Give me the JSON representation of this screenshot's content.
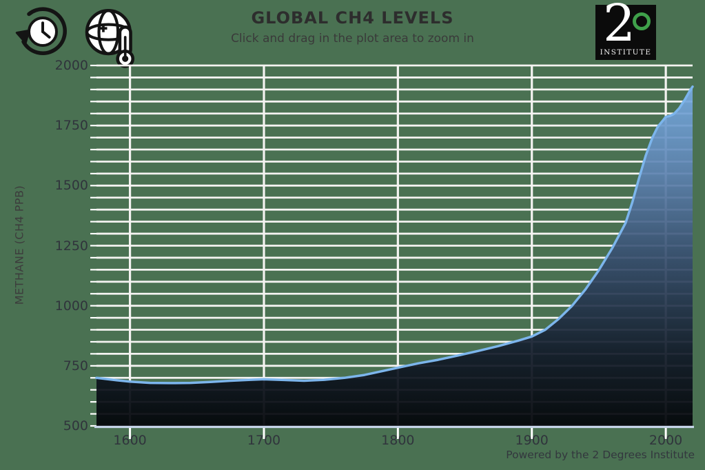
{
  "page": {
    "background_color": "#4a7152"
  },
  "header": {
    "icons": [
      {
        "name": "history-clock-icon"
      },
      {
        "name": "globe-thermometer-icon"
      }
    ]
  },
  "logo": {
    "number": "2",
    "degree_symbol": "°",
    "word": "INSTITUTE",
    "background_color": "#0b0b0b",
    "degree_color": "#3fa04a"
  },
  "credit": "Powered by the 2 Degrees Institute",
  "chart_data": {
    "type": "area",
    "title": "GLOBAL CH4 LEVELS",
    "subtitle": "Click and drag in the plot area to zoom in",
    "xlabel": "",
    "ylabel": "METHANE (CH4 PPB)",
    "xlim": [
      1575,
      2020
    ],
    "ylim": [
      500,
      2000
    ],
    "x_ticks": [
      1600,
      1700,
      1800,
      1900,
      2000
    ],
    "y_ticks": [
      500,
      750,
      1000,
      1250,
      1500,
      1750,
      2000
    ],
    "y_minor_step": 50,
    "grid": "on",
    "legend": "none",
    "series": [
      {
        "name": "Global CH4 levels (ppb)",
        "points": [
          [
            1575,
            700
          ],
          [
            1590,
            690
          ],
          [
            1600,
            684
          ],
          [
            1615,
            679
          ],
          [
            1630,
            678
          ],
          [
            1645,
            679
          ],
          [
            1660,
            683
          ],
          [
            1675,
            688
          ],
          [
            1690,
            692
          ],
          [
            1700,
            694
          ],
          [
            1715,
            691
          ],
          [
            1730,
            688
          ],
          [
            1745,
            692
          ],
          [
            1760,
            700
          ],
          [
            1775,
            712
          ],
          [
            1790,
            730
          ],
          [
            1800,
            742
          ],
          [
            1815,
            760
          ],
          [
            1830,
            775
          ],
          [
            1845,
            793
          ],
          [
            1860,
            812
          ],
          [
            1875,
            832
          ],
          [
            1890,
            855
          ],
          [
            1900,
            872
          ],
          [
            1910,
            900
          ],
          [
            1920,
            945
          ],
          [
            1930,
            1000
          ],
          [
            1940,
            1068
          ],
          [
            1950,
            1148
          ],
          [
            1960,
            1240
          ],
          [
            1970,
            1345
          ],
          [
            1975,
            1430
          ],
          [
            1980,
            1530
          ],
          [
            1985,
            1625
          ],
          [
            1990,
            1700
          ],
          [
            1994,
            1745
          ],
          [
            1998,
            1772
          ],
          [
            2000,
            1786
          ],
          [
            2003,
            1790
          ],
          [
            2006,
            1798
          ],
          [
            2010,
            1822
          ],
          [
            2014,
            1856
          ],
          [
            2018,
            1895
          ],
          [
            2020,
            1912
          ]
        ]
      }
    ],
    "style": {
      "line_color": "#7cb5ec",
      "line_width": 3.5,
      "grid_color": "#f4f3f1",
      "grid_width": 2.8,
      "axis_line_color": "#c5d4e8",
      "tick_color": "#ffffff",
      "fill_gradient": [
        [
          0.0,
          "rgba(126,182,238,0.92)"
        ],
        [
          0.3,
          "rgba(93,130,176,0.92)"
        ],
        [
          0.55,
          "rgba(52,74,105,0.92)"
        ],
        [
          0.8,
          "rgba(18,27,41,0.93)"
        ],
        [
          1.0,
          "rgba(3,5,9,0.94)"
        ]
      ]
    }
  }
}
